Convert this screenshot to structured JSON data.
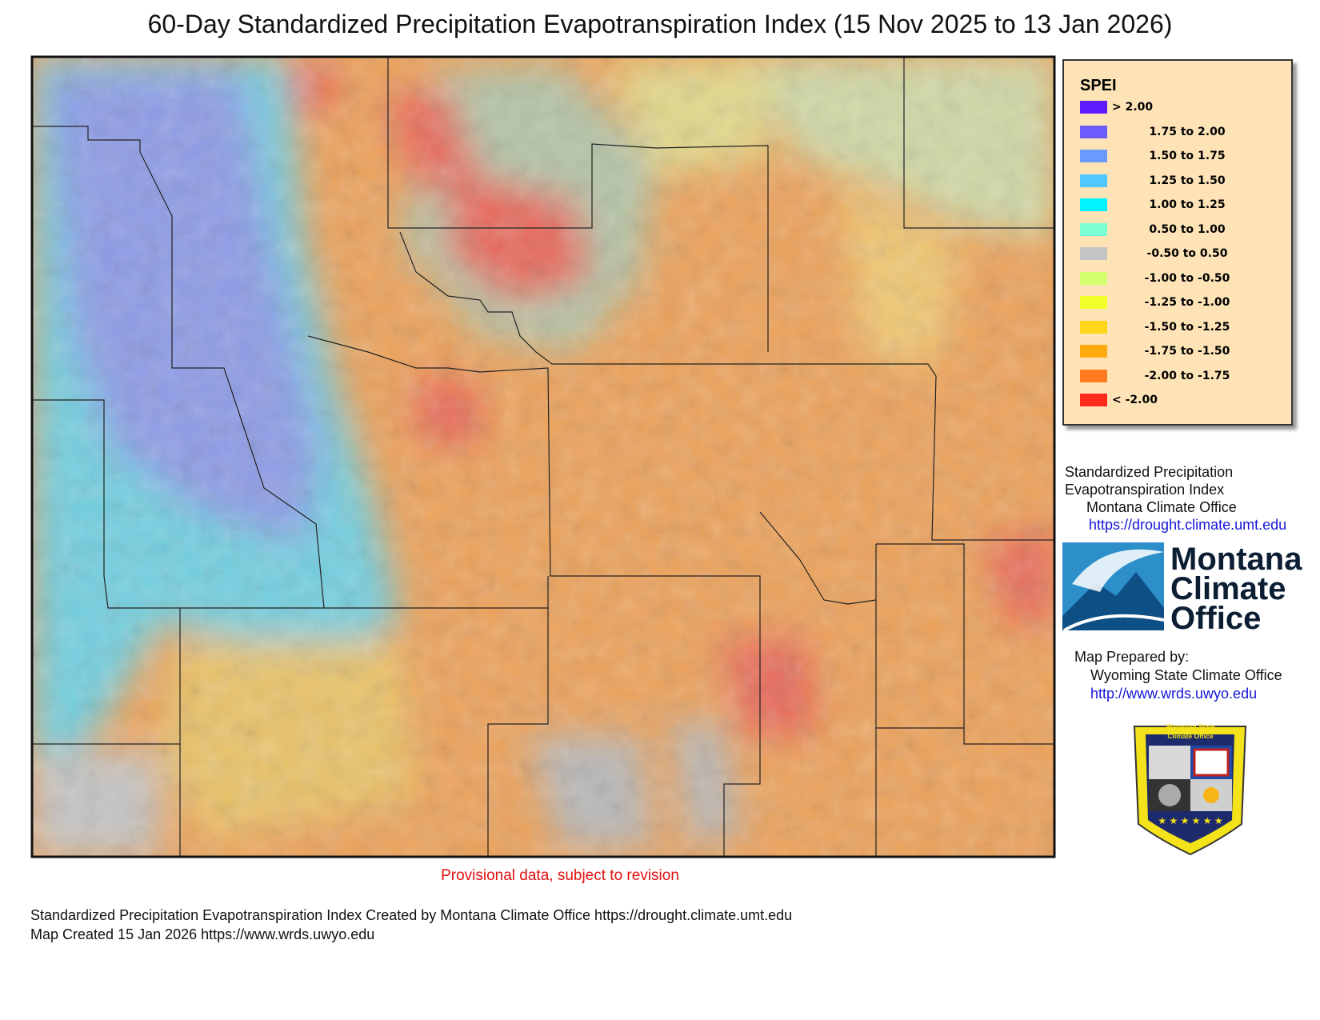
{
  "title": "60-Day Standardized Precipitation Evapotranspiration Index (15 Nov 2025 to 13 Jan 2026)",
  "legend": {
    "title": "SPEI",
    "items": [
      {
        "label": "> 2.00",
        "color": "#5f1cff"
      },
      {
        "label": "1.75 to 2.00",
        "color": "#6a5cff"
      },
      {
        "label": "1.50 to 1.75",
        "color": "#6b9aff"
      },
      {
        "label": "1.25 to 1.50",
        "color": "#4fc8ff"
      },
      {
        "label": "1.00 to 1.25",
        "color": "#00f4ff"
      },
      {
        "label": "0.50 to 1.00",
        "color": "#7dffd4"
      },
      {
        "label": "-0.50 to 0.50",
        "color": "#c4c4c4"
      },
      {
        "label": "-1.00 to -0.50",
        "color": "#d4ff6e"
      },
      {
        "label": "-1.25 to -1.00",
        "color": "#f2ff2a"
      },
      {
        "label": "-1.50 to -1.25",
        "color": "#ffd61a"
      },
      {
        "label": "-1.75 to -1.50",
        "color": "#ffaa10"
      },
      {
        "label": "-2.00 to -1.75",
        "color": "#ff7a20"
      },
      {
        "label": "< -2.00",
        "color": "#ff2a1a"
      }
    ]
  },
  "source": {
    "lines": [
      "Standardized Precipitation",
      "Evapotranspiration Index",
      "Montana Climate Office"
    ],
    "url": "https://drought.climate.umt.edu"
  },
  "montana_logo": [
    "Montana",
    "Climate",
    "Office"
  ],
  "prepared": {
    "label": "Map Prepared by:",
    "org": "Wyoming State Climate Office",
    "url": "http://www.wrds.uwyo.edu"
  },
  "badge": [
    "Wyoming State",
    "Climate Office"
  ],
  "note": "Provisional data, subject to revision",
  "footer": [
    "Standardized Precipitation Evapotranspiration Index Created by Montana Climate Office https://drought.climate.umt.edu",
    "Map Created 15 Jan 2026 https://www.wrds.uwyo.edu"
  ]
}
